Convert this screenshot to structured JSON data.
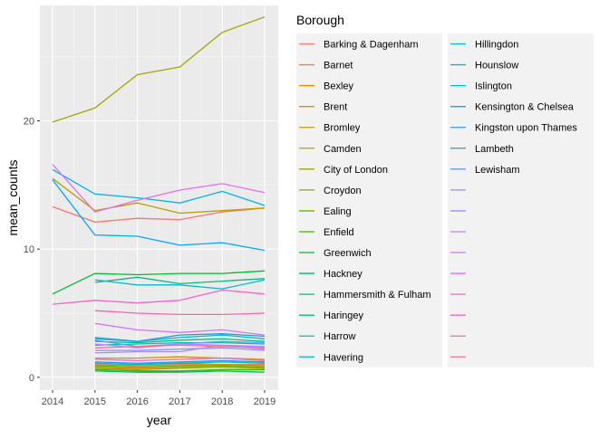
{
  "chart_data": {
    "type": "line",
    "xlabel": "year",
    "ylabel": "mean_counts",
    "x": [
      2014,
      2015,
      2016,
      2017,
      2018,
      2019
    ],
    "xlim": [
      2014,
      2019
    ],
    "ylim": [
      -1,
      29
    ],
    "yticks": [
      0,
      10,
      20
    ],
    "grid": true,
    "legend": {
      "title": "Borough",
      "placement": "right",
      "columns": 2,
      "entries": [
        {
          "label": "Barking & Dagenham",
          "color": "#F8766D"
        },
        {
          "label": "Barnet",
          "color": "#F07E4D"
        },
        {
          "label": "Bexley",
          "color": "#E58700"
        },
        {
          "label": "Brent",
          "color": "#D89000"
        },
        {
          "label": "Bromley",
          "color": "#C99800"
        },
        {
          "label": "Camden",
          "color": "#B8A000"
        },
        {
          "label": "City of London",
          "color": "#A3A500"
        },
        {
          "label": "Croydon",
          "color": "#8BAB00"
        },
        {
          "label": "Ealing",
          "color": "#6BB100"
        },
        {
          "label": "Enfield",
          "color": "#3DB700"
        },
        {
          "label": "Greenwich",
          "color": "#00BA38"
        },
        {
          "label": "Hackney",
          "color": "#00BD5C"
        },
        {
          "label": "Hammersmith & Fulham",
          "color": "#00C079"
        },
        {
          "label": "Haringey",
          "color": "#00C08B"
        },
        {
          "label": "Harrow",
          "color": "#00C1A3"
        },
        {
          "label": "Havering",
          "color": "#00BFB4"
        },
        {
          "label": "Hillingdon",
          "color": "#00BCC4"
        },
        {
          "label": "Hounslow",
          "color": "#00BBD3"
        },
        {
          "label": "Islington",
          "color": "#00B4EF"
        },
        {
          "label": "Kensington & Chelsea",
          "color": "#00A9FF"
        },
        {
          "label": "Kingston upon Thames",
          "color": "#1F9DFF"
        },
        {
          "label": "Lambeth",
          "color": "#2596E8"
        },
        {
          "label": "Lewisham",
          "color": "#619CFF"
        },
        {
          "label": "",
          "color": "#8B93FF"
        },
        {
          "label": "",
          "color": "#A58AFF"
        },
        {
          "label": "",
          "color": "#BA81FF"
        },
        {
          "label": "",
          "color": "#D177F5"
        },
        {
          "label": "",
          "color": "#E76BF3"
        },
        {
          "label": "",
          "color": "#F063D8"
        },
        {
          "label": "",
          "color": "#FA62C4"
        },
        {
          "label": "",
          "color": "#FD61AB"
        },
        {
          "label": "",
          "color": "#FF6C91"
        }
      ]
    },
    "series": [
      {
        "color": "#F8766D",
        "values": [
          13.3,
          12.1,
          12.4,
          12.3,
          12.9,
          13.2
        ]
      },
      {
        "color": "#F07E4D",
        "values": [
          null,
          1.0,
          0.9,
          1.0,
          1.0,
          1.0
        ]
      },
      {
        "color": "#E58700",
        "values": [
          null,
          0.8,
          0.7,
          0.8,
          0.9,
          0.8
        ]
      },
      {
        "color": "#D89000",
        "values": [
          null,
          1.5,
          1.5,
          1.6,
          1.5,
          1.4
        ]
      },
      {
        "color": "#C99800",
        "values": [
          null,
          0.9,
          1.0,
          1.1,
          1.0,
          0.9
        ]
      },
      {
        "color": "#B8A000",
        "values": [
          15.5,
          13.0,
          13.6,
          12.8,
          13.0,
          13.2
        ]
      },
      {
        "color": "#A3A500",
        "values": [
          19.9,
          21.0,
          23.6,
          24.2,
          26.9,
          28.1
        ]
      },
      {
        "color": "#8BAB00",
        "values": [
          null,
          0.7,
          0.6,
          0.7,
          0.8,
          0.7
        ]
      },
      {
        "color": "#6BB100",
        "values": [
          null,
          0.9,
          0.8,
          0.9,
          0.9,
          0.8
        ]
      },
      {
        "color": "#3DB700",
        "values": [
          null,
          0.6,
          0.5,
          0.5,
          0.6,
          0.6
        ]
      },
      {
        "color": "#00BA38",
        "values": [
          6.5,
          8.1,
          8.0,
          8.1,
          8.1,
          8.3
        ]
      },
      {
        "color": "#00BD5C",
        "values": [
          null,
          0.5,
          0.4,
          0.4,
          0.5,
          0.4
        ]
      },
      {
        "color": "#00C079",
        "values": [
          null,
          7.4,
          7.8,
          7.3,
          7.5,
          7.7
        ]
      },
      {
        "color": "#00C08B",
        "values": [
          null,
          2.8,
          2.7,
          2.9,
          3.0,
          2.8
        ]
      },
      {
        "color": "#00C1A3",
        "values": [
          null,
          2.5,
          2.6,
          2.7,
          2.7,
          2.6
        ]
      },
      {
        "color": "#00BFB4",
        "values": [
          null,
          1.1,
          1.0,
          1.1,
          1.2,
          1.1
        ]
      },
      {
        "color": "#00BCC4",
        "values": [
          null,
          3.0,
          2.8,
          3.1,
          3.3,
          3.0
        ]
      },
      {
        "color": "#00BBD3",
        "values": [
          null,
          7.6,
          7.2,
          7.2,
          6.9,
          7.6
        ]
      },
      {
        "color": "#00B4EF",
        "values": [
          16.2,
          14.3,
          14.0,
          13.6,
          14.5,
          13.4
        ]
      },
      {
        "color": "#00A9FF",
        "values": [
          15.4,
          11.1,
          11.0,
          10.3,
          10.5,
          9.9
        ]
      },
      {
        "color": "#1F9DFF",
        "values": [
          null,
          1.2,
          1.1,
          1.2,
          1.3,
          1.2
        ]
      },
      {
        "color": "#2596E8",
        "values": [
          null,
          3.1,
          2.8,
          3.3,
          3.4,
          3.2
        ]
      },
      {
        "color": "#619CFF",
        "values": [
          null,
          2.9,
          2.4,
          2.6,
          2.8,
          2.7
        ]
      },
      {
        "color": "#8B93FF",
        "values": [
          null,
          2.1,
          2.1,
          2.2,
          2.3,
          2.1
        ]
      },
      {
        "color": "#A58AFF",
        "values": [
          null,
          1.9,
          2.0,
          2.0,
          2.5,
          2.2
        ]
      },
      {
        "color": "#BA81FF",
        "values": [
          null,
          2.6,
          2.3,
          2.6,
          2.5,
          2.4
        ]
      },
      {
        "color": "#D177F5",
        "values": [
          null,
          4.2,
          3.7,
          3.5,
          3.7,
          3.3
        ]
      },
      {
        "color": "#E76BF3",
        "values": [
          16.6,
          12.9,
          13.8,
          14.6,
          15.1,
          14.4
        ]
      },
      {
        "color": "#F063D8",
        "values": [
          null,
          1.4,
          1.3,
          1.4,
          1.5,
          1.3
        ]
      },
      {
        "color": "#FA62C4",
        "values": [
          5.7,
          6.0,
          5.8,
          6.0,
          6.8,
          6.5
        ]
      },
      {
        "color": "#FD61AB",
        "values": [
          null,
          5.2,
          5.0,
          4.9,
          4.9,
          5.0
        ]
      },
      {
        "color": "#FF6C91",
        "values": [
          null,
          2.3,
          2.4,
          2.5,
          2.4,
          2.3
        ]
      }
    ]
  }
}
